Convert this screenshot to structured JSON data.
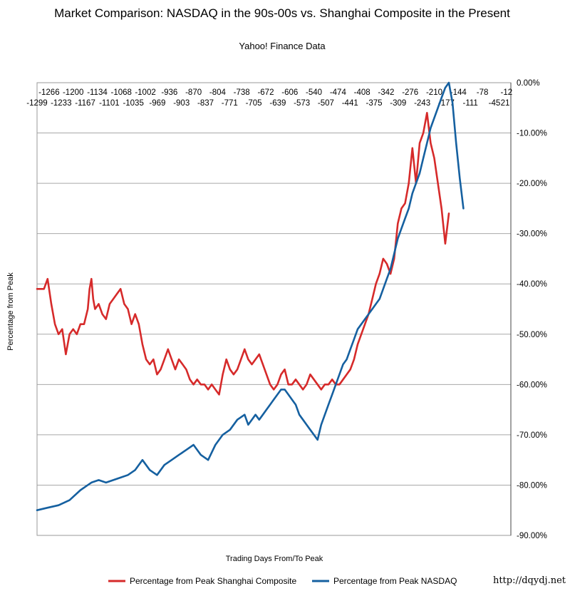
{
  "chart_data": {
    "type": "line",
    "title": "Market Comparison: NASDAQ in the 90s-00s vs. Shanghai Composite in the Present",
    "subtitle": "Yahoo! Finance Data",
    "xlabel": "Trading Days From/To Peak",
    "ylabel": "Percentage from Peak",
    "xlim": [
      -1299,
      0
    ],
    "ylim": [
      -90,
      0
    ],
    "x_ticks_top_row": [
      "-1266",
      "-1200",
      "-1134",
      "-1068",
      "-1002",
      "-936",
      "-870",
      "-804",
      "-738",
      "-672",
      "-606",
      "-540",
      "-474",
      "-408",
      "-342",
      "-276",
      "-210",
      "-144",
      "-78",
      "-12"
    ],
    "x_ticks_bottom_row": [
      "-1299",
      "-1233",
      "-1167",
      "-1101",
      "-1035",
      "-969",
      "-903",
      "-837",
      "-771",
      "-705",
      "-639",
      "-573",
      "-507",
      "-441",
      "-375",
      "-309",
      "-243",
      "-177",
      "-111",
      "-45",
      "21"
    ],
    "y_ticks": [
      "0.00%",
      "-10.00%",
      "-20.00%",
      "-30.00%",
      "-40.00%",
      "-50.00%",
      "-60.00%",
      "-70.00%",
      "-80.00%",
      "-90.00%"
    ],
    "y_tick_values": [
      0,
      -10,
      -20,
      -30,
      -40,
      -50,
      -60,
      -70,
      -80,
      -90
    ],
    "legend_position": "bottom",
    "series": [
      {
        "name": "Percentage from Peak Shanghai Composite",
        "legend_label": "Percentage  from  Peak  Shanghai  Composite",
        "color": "#d62a2a",
        "points": [
          [
            -1299,
            -41
          ],
          [
            -1280,
            -41
          ],
          [
            -1270,
            -39
          ],
          [
            -1260,
            -44
          ],
          [
            -1250,
            -48
          ],
          [
            -1240,
            -50
          ],
          [
            -1230,
            -49
          ],
          [
            -1220,
            -54
          ],
          [
            -1210,
            -50
          ],
          [
            -1200,
            -49
          ],
          [
            -1190,
            -50
          ],
          [
            -1180,
            -48
          ],
          [
            -1170,
            -48
          ],
          [
            -1160,
            -45
          ],
          [
            -1155,
            -41
          ],
          [
            -1150,
            -39
          ],
          [
            -1145,
            -43
          ],
          [
            -1140,
            -45
          ],
          [
            -1130,
            -44
          ],
          [
            -1120,
            -46
          ],
          [
            -1110,
            -47
          ],
          [
            -1100,
            -44
          ],
          [
            -1090,
            -43
          ],
          [
            -1080,
            -42
          ],
          [
            -1070,
            -41
          ],
          [
            -1060,
            -44
          ],
          [
            -1050,
            -45
          ],
          [
            -1040,
            -48
          ],
          [
            -1030,
            -46
          ],
          [
            -1020,
            -48
          ],
          [
            -1010,
            -52
          ],
          [
            -1000,
            -55
          ],
          [
            -990,
            -56
          ],
          [
            -980,
            -55
          ],
          [
            -970,
            -58
          ],
          [
            -960,
            -57
          ],
          [
            -950,
            -55
          ],
          [
            -940,
            -53
          ],
          [
            -930,
            -55
          ],
          [
            -920,
            -57
          ],
          [
            -910,
            -55
          ],
          [
            -900,
            -56
          ],
          [
            -890,
            -57
          ],
          [
            -880,
            -59
          ],
          [
            -870,
            -60
          ],
          [
            -860,
            -59
          ],
          [
            -850,
            -60
          ],
          [
            -840,
            -60
          ],
          [
            -830,
            -61
          ],
          [
            -820,
            -60
          ],
          [
            -810,
            -61
          ],
          [
            -800,
            -62
          ],
          [
            -790,
            -58
          ],
          [
            -780,
            -55
          ],
          [
            -770,
            -57
          ],
          [
            -760,
            -58
          ],
          [
            -750,
            -57
          ],
          [
            -740,
            -55
          ],
          [
            -730,
            -53
          ],
          [
            -720,
            -55
          ],
          [
            -710,
            -56
          ],
          [
            -700,
            -55
          ],
          [
            -690,
            -54
          ],
          [
            -680,
            -56
          ],
          [
            -670,
            -58
          ],
          [
            -660,
            -60
          ],
          [
            -650,
            -61
          ],
          [
            -640,
            -60
          ],
          [
            -630,
            -58
          ],
          [
            -620,
            -57
          ],
          [
            -610,
            -60
          ],
          [
            -600,
            -60
          ],
          [
            -590,
            -59
          ],
          [
            -580,
            -60
          ],
          [
            -570,
            -61
          ],
          [
            -560,
            -60
          ],
          [
            -550,
            -58
          ],
          [
            -540,
            -59
          ],
          [
            -530,
            -60
          ],
          [
            -520,
            -61
          ],
          [
            -510,
            -60
          ],
          [
            -500,
            -60
          ],
          [
            -490,
            -59
          ],
          [
            -480,
            -60
          ],
          [
            -470,
            -60
          ],
          [
            -460,
            -59
          ],
          [
            -450,
            -58
          ],
          [
            -440,
            -57
          ],
          [
            -430,
            -55
          ],
          [
            -420,
            -52
          ],
          [
            -410,
            -50
          ],
          [
            -400,
            -48
          ],
          [
            -390,
            -46
          ],
          [
            -380,
            -43
          ],
          [
            -370,
            -40
          ],
          [
            -360,
            -38
          ],
          [
            -350,
            -35
          ],
          [
            -340,
            -36
          ],
          [
            -330,
            -38
          ],
          [
            -320,
            -35
          ],
          [
            -310,
            -28
          ],
          [
            -300,
            -25
          ],
          [
            -290,
            -24
          ],
          [
            -280,
            -20
          ],
          [
            -270,
            -13
          ],
          [
            -260,
            -20
          ],
          [
            -250,
            -12
          ],
          [
            -240,
            -10
          ],
          [
            -230,
            -6
          ],
          [
            -220,
            -12
          ],
          [
            -210,
            -15
          ],
          [
            -200,
            -20
          ],
          [
            -190,
            -25
          ],
          [
            -180,
            -32
          ],
          [
            -170,
            -26
          ]
        ]
      },
      {
        "name": "Percentage from Peak NASDAQ",
        "legend_label": "Percentage  from  Peak  NASDAQ",
        "color": "#1560a0",
        "points": [
          [
            -1299,
            -85
          ],
          [
            -1270,
            -84.5
          ],
          [
            -1240,
            -84
          ],
          [
            -1210,
            -83
          ],
          [
            -1180,
            -81
          ],
          [
            -1150,
            -79.5
          ],
          [
            -1130,
            -79
          ],
          [
            -1110,
            -79.5
          ],
          [
            -1090,
            -79
          ],
          [
            -1070,
            -78.5
          ],
          [
            -1050,
            -78
          ],
          [
            -1030,
            -77
          ],
          [
            -1010,
            -75
          ],
          [
            -990,
            -77
          ],
          [
            -970,
            -78
          ],
          [
            -950,
            -76
          ],
          [
            -930,
            -75
          ],
          [
            -910,
            -74
          ],
          [
            -890,
            -73
          ],
          [
            -870,
            -72
          ],
          [
            -850,
            -74
          ],
          [
            -830,
            -75
          ],
          [
            -810,
            -72
          ],
          [
            -790,
            -70
          ],
          [
            -770,
            -69
          ],
          [
            -750,
            -67
          ],
          [
            -730,
            -66
          ],
          [
            -720,
            -68
          ],
          [
            -710,
            -67
          ],
          [
            -700,
            -66
          ],
          [
            -690,
            -67
          ],
          [
            -680,
            -66
          ],
          [
            -670,
            -65
          ],
          [
            -660,
            -64
          ],
          [
            -650,
            -63
          ],
          [
            -640,
            -62
          ],
          [
            -630,
            -61
          ],
          [
            -620,
            -61
          ],
          [
            -610,
            -62
          ],
          [
            -600,
            -63
          ],
          [
            -590,
            -64
          ],
          [
            -580,
            -66
          ],
          [
            -570,
            -67
          ],
          [
            -560,
            -68
          ],
          [
            -550,
            -69
          ],
          [
            -540,
            -70
          ],
          [
            -530,
            -71
          ],
          [
            -520,
            -68
          ],
          [
            -510,
            -66
          ],
          [
            -500,
            -64
          ],
          [
            -490,
            -62
          ],
          [
            -480,
            -60
          ],
          [
            -470,
            -58
          ],
          [
            -460,
            -56
          ],
          [
            -450,
            -55
          ],
          [
            -440,
            -53
          ],
          [
            -430,
            -51
          ],
          [
            -420,
            -49
          ],
          [
            -410,
            -48
          ],
          [
            -400,
            -47
          ],
          [
            -390,
            -46
          ],
          [
            -380,
            -45
          ],
          [
            -370,
            -44
          ],
          [
            -360,
            -43
          ],
          [
            -350,
            -41
          ],
          [
            -340,
            -39
          ],
          [
            -330,
            -37
          ],
          [
            -320,
            -34
          ],
          [
            -310,
            -31
          ],
          [
            -300,
            -29
          ],
          [
            -290,
            -27
          ],
          [
            -280,
            -25
          ],
          [
            -270,
            -22
          ],
          [
            -260,
            -20
          ],
          [
            -250,
            -18
          ],
          [
            -240,
            -15
          ],
          [
            -230,
            -12
          ],
          [
            -220,
            -9
          ],
          [
            -210,
            -7
          ],
          [
            -200,
            -5
          ],
          [
            -190,
            -3
          ],
          [
            -180,
            -1
          ],
          [
            -170,
            0
          ],
          [
            -160,
            -4
          ],
          [
            -150,
            -12
          ],
          [
            -140,
            -19
          ],
          [
            -130,
            -25
          ]
        ]
      }
    ]
  },
  "credit": "http://dqydj.net"
}
